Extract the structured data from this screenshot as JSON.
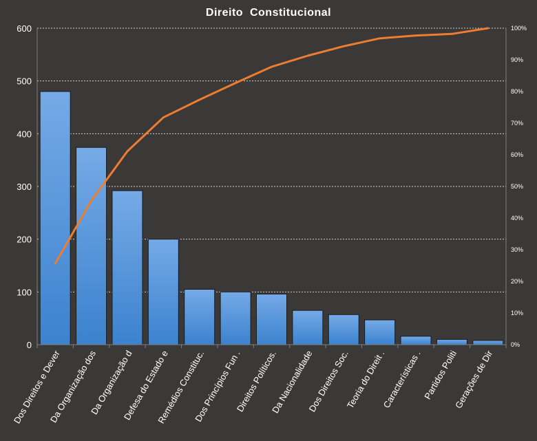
{
  "chart_data": {
    "type": "bar",
    "title": "Direito  Constitucional",
    "categories": [
      "Dos Direitos e Dever",
      "Da Organização dos",
      "Da Organização d",
      "Defesa do Estado e",
      "Remédios Constituc.",
      "Dos Princípios Fun .",
      "Direitos Políticos.",
      "Da Nacionalidade",
      "Dos Direitos Soc.",
      "Teoria do Direit .",
      "Características .",
      "Partidos Politi",
      "Gerações de Dir"
    ],
    "series": [
      {
        "type": "bar",
        "axis": "left",
        "values": [
          480,
          374,
          292,
          200,
          105,
          100,
          96,
          65,
          57,
          47,
          16,
          10,
          8
        ]
      },
      {
        "type": "line",
        "axis": "right",
        "values": [
          25.6,
          45.5,
          61.1,
          71.8,
          77.4,
          82.7,
          87.8,
          91.3,
          94.3,
          96.8,
          97.7,
          98.2,
          100
        ]
      }
    ],
    "ylim": [
      0,
      600
    ],
    "yticks": [
      "0",
      "100",
      "200",
      "300",
      "400",
      "500",
      "600"
    ],
    "y2lim": [
      0,
      100
    ],
    "y2ticks": [
      "0%",
      "10%",
      "20%",
      "30%",
      "40%",
      "50%",
      "60%",
      "70%",
      "80%",
      "90%",
      "100%"
    ],
    "xlabel": "",
    "ylabel": "",
    "grid": true,
    "colors": {
      "background": "#3b3838",
      "bar_top": "#75aae6",
      "bar_bottom": "#3c82ce",
      "bar_border": "#1a1a1a",
      "line": "#ed7d31",
      "grid": "#d0d0d0",
      "axis": "#7f7f7f",
      "text": "#ffffff"
    }
  }
}
